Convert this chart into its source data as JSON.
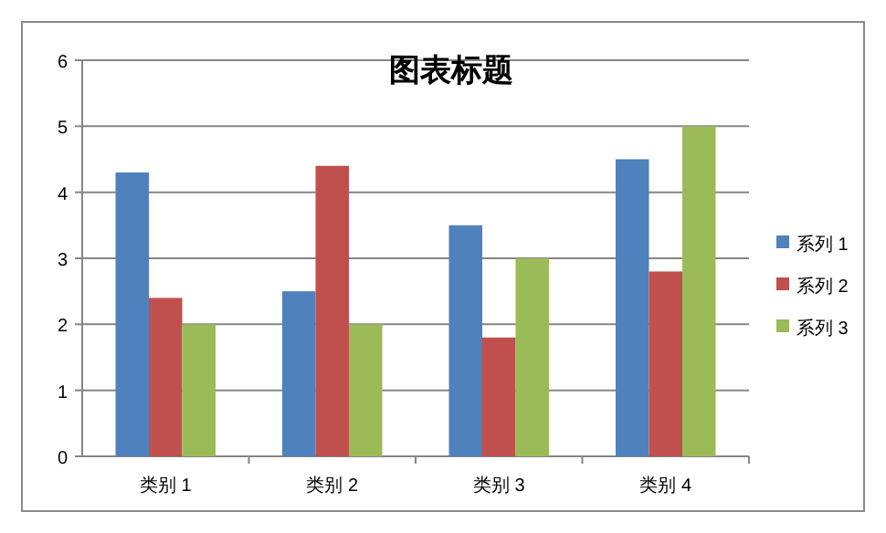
{
  "chart_data": {
    "type": "bar",
    "title": "图表标题",
    "categories": [
      "类别 1",
      "类别 2",
      "类别 3",
      "类别 4"
    ],
    "series": [
      {
        "name": "系列 1",
        "color": "#4f81bd",
        "values": [
          4.3,
          2.5,
          3.5,
          4.5
        ]
      },
      {
        "name": "系列 2",
        "color": "#c0504d",
        "values": [
          2.4,
          4.4,
          1.8,
          2.8
        ]
      },
      {
        "name": "系列 3",
        "color": "#9bbb59",
        "values": [
          2,
          2,
          3,
          5
        ]
      }
    ],
    "ylim": [
      0,
      6
    ],
    "yticks": [
      0,
      1,
      2,
      3,
      4,
      5,
      6
    ],
    "grid": "y",
    "legend": "right"
  }
}
